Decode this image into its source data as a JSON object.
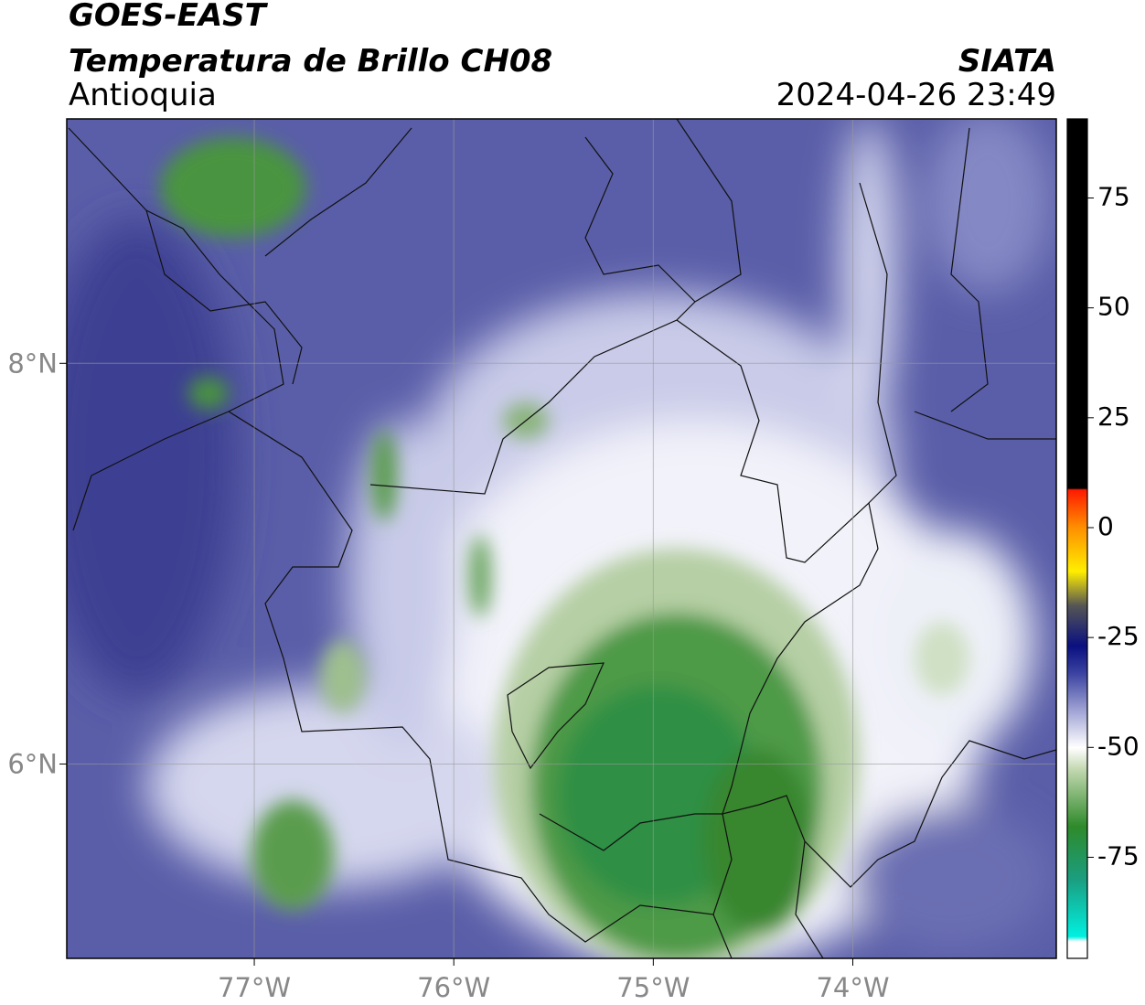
{
  "header": {
    "title": "GOES-EAST",
    "subtitle": "Temperatura de Brillo CH08",
    "region": "Antioquia",
    "source": "SIATA",
    "datetime": "2024-04-26 23:49"
  },
  "map": {
    "xlim": [
      -77.94,
      -72.98
    ],
    "ylim": [
      5.03,
      9.22
    ],
    "xticks": [
      {
        "value": -77,
        "label": "77°W"
      },
      {
        "value": -76,
        "label": "76°W"
      },
      {
        "value": -75,
        "label": "75°W"
      },
      {
        "value": -74,
        "label": "74°W"
      }
    ],
    "yticks": [
      {
        "value": 6,
        "label": "6°N"
      },
      {
        "value": 8,
        "label": "8°N"
      }
    ],
    "grid": true
  },
  "colorbar": {
    "lim": [
      -98,
      93
    ],
    "ticks": [
      -75,
      -50,
      -25,
      0,
      25,
      50,
      75
    ]
  }
}
